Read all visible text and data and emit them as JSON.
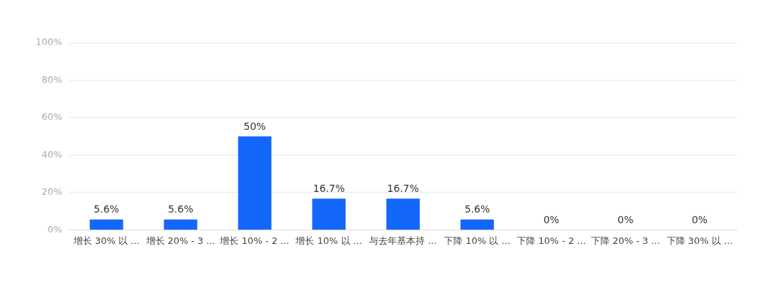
{
  "chart_data": {
    "type": "bar",
    "categories": [
      "增长 30% 以 ...",
      "增长 20% - 3 ...",
      "增长 10% - 2 ...",
      "增长 10% 以 ...",
      "与去年基本持 ...",
      "下降 10% 以 ...",
      "下降 10% - 2 ...",
      "下降 20% - 3 ...",
      "下降 30% 以 ..."
    ],
    "values": [
      5.6,
      5.6,
      50,
      16.7,
      16.7,
      5.6,
      0,
      0,
      0
    ],
    "value_labels": [
      "5.6%",
      "5.6%",
      "50%",
      "16.7%",
      "16.7%",
      "5.6%",
      "0%",
      "0%",
      "0%"
    ],
    "color": "#1368fb",
    "ylim": [
      0,
      100
    ],
    "yticks": [
      {
        "value": 0,
        "label": "0%"
      },
      {
        "value": 20,
        "label": "20%"
      },
      {
        "value": 40,
        "label": "40%"
      },
      {
        "value": 60,
        "label": "60%"
      },
      {
        "value": 80,
        "label": "80%"
      },
      {
        "value": 100,
        "label": "100%"
      }
    ],
    "grid": "y"
  }
}
